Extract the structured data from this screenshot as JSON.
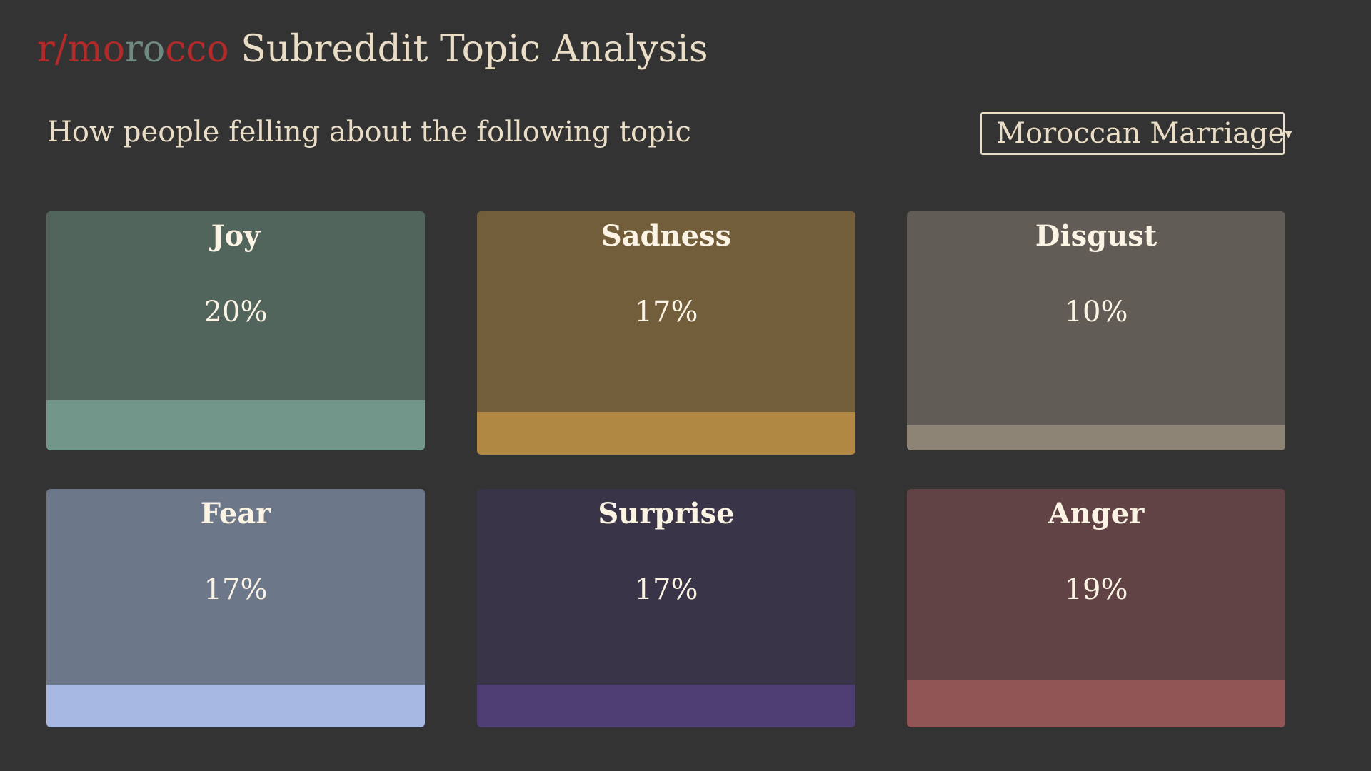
{
  "header": {
    "title_parts": [
      {
        "text": "r/",
        "color": "#b42a2a"
      },
      {
        "text": "mo",
        "color": "#b42a2a"
      },
      {
        "text": "ro",
        "color": "#6f8a80"
      },
      {
        "text": "cco",
        "color": "#b42a2a"
      }
    ],
    "title_rest": "Subreddit Topic Analysis"
  },
  "prompt": "How people felling about the following topic",
  "topic_select": {
    "value": "Moroccan Marriage",
    "caret": "▾"
  },
  "emotions": [
    {
      "name": "Joy",
      "percent": "20%",
      "value": 0.2,
      "bg": "#52655d",
      "bar": "#73968a"
    },
    {
      "name": "Sadness",
      "percent": "17%",
      "value": 0.17,
      "bg": "#735e3b",
      "bar": "#b08844"
    },
    {
      "name": "Disgust",
      "percent": "10%",
      "value": 0.1,
      "bg": "#625c57",
      "bar": "#8d8476"
    },
    {
      "name": "Fear",
      "percent": "17%",
      "value": 0.17,
      "bg": "#6c788a",
      "bar": "#a7b9e2"
    },
    {
      "name": "Surprise",
      "percent": "17%",
      "value": 0.17,
      "bg": "#393448",
      "bar": "#4e3e73"
    },
    {
      "name": "Anger",
      "percent": "19%",
      "value": 0.19,
      "bg": "#624345",
      "bar": "#925556"
    }
  ]
}
